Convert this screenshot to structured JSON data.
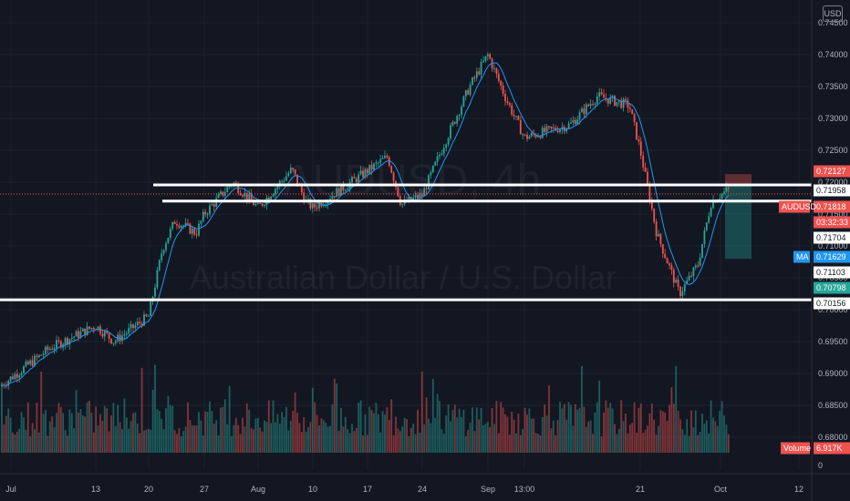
{
  "currency_label": "USD",
  "watermark": {
    "symbol": "AUDUSD, 4h",
    "name": "Australian Dollar / U.S. Dollar"
  },
  "colors": {
    "background": "#131722",
    "up": "#26a69a",
    "down": "#ef5350",
    "ma": "#2196f3",
    "level_line": "#ffffff"
  },
  "chart_data": {
    "type": "candlestick",
    "symbol": "AUDUSD",
    "timeframe": "4h",
    "title": "AUDUSD, 4h",
    "subtitle": "Australian Dollar / U.S. Dollar",
    "xlabel": "",
    "ylabel": "",
    "ylim": [
      0.675,
      0.745
    ],
    "y_ticks": [
      "0.74500",
      "0.74000",
      "0.73500",
      "0.73000",
      "0.72500",
      "0.72000",
      "0.71500",
      "0.71000",
      "0.70500",
      "0.70000",
      "0.69500",
      "0.69000",
      "0.68500",
      "0.68000"
    ],
    "x_ticks": [
      "Jul",
      "13",
      "20",
      "27",
      "Aug",
      "10",
      "17",
      "24",
      "Sep",
      "13:00",
      "21",
      "Oct",
      "12"
    ],
    "volume_axis_label": "0",
    "price_path": [
      {
        "date": "Jul",
        "close": 0.688
      },
      {
        "date": "Jul 06",
        "close": 0.694
      },
      {
        "date": "Jul 13",
        "close": 0.6975
      },
      {
        "date": "Jul 16",
        "close": 0.695
      },
      {
        "date": "Jul 20",
        "close": 0.699
      },
      {
        "date": "Jul 21",
        "close": 0.7095
      },
      {
        "date": "Jul 22",
        "close": 0.714
      },
      {
        "date": "Jul 24",
        "close": 0.712
      },
      {
        "date": "Jul 27",
        "close": 0.715
      },
      {
        "date": "Jul 30",
        "close": 0.72
      },
      {
        "date": "Aug",
        "close": 0.716
      },
      {
        "date": "Aug 05",
        "close": 0.722
      },
      {
        "date": "Aug 07",
        "close": 0.717
      },
      {
        "date": "Aug 10",
        "close": 0.716
      },
      {
        "date": "Aug 12",
        "close": 0.719
      },
      {
        "date": "Aug 17",
        "close": 0.724
      },
      {
        "date": "Aug 20",
        "close": 0.7165
      },
      {
        "date": "Aug 24",
        "close": 0.718
      },
      {
        "date": "Aug 27",
        "close": 0.726
      },
      {
        "date": "Aug 30",
        "close": 0.735
      },
      {
        "date": "Sep",
        "close": 0.74
      },
      {
        "date": "Sep 03",
        "close": 0.733
      },
      {
        "date": "Sep 07",
        "close": 0.727
      },
      {
        "date": "Sep 10",
        "close": 0.728
      },
      {
        "date": "Sep 14",
        "close": 0.729
      },
      {
        "date": "Sep 16",
        "close": 0.7335
      },
      {
        "date": "Sep 18",
        "close": 0.732
      },
      {
        "date": "Sep 21",
        "close": 0.725
      },
      {
        "date": "Sep 23",
        "close": 0.712
      },
      {
        "date": "Sep 25",
        "close": 0.7025
      },
      {
        "date": "Sep 28",
        "close": 0.707
      },
      {
        "date": "Sep 30",
        "close": 0.717
      },
      {
        "date": "Oct",
        "close": 0.719
      }
    ],
    "levels": [
      0.71958,
      0.71704,
      0.70156
    ],
    "price_labels": [
      {
        "name": "",
        "value": "0.72127",
        "color": "#ef5350"
      },
      {
        "name": "",
        "value": "0.71958",
        "color": "#ffffff"
      },
      {
        "name": "AUDUSD",
        "value": "0.71818",
        "color": "#ef5350"
      },
      {
        "name": "",
        "value": "03:32:33",
        "color": "#ef5350"
      },
      {
        "name": "",
        "value": "0.71704",
        "color": "#ffffff"
      },
      {
        "name": "",
        "value": "0.71629",
        "color": "#2196f3"
      },
      {
        "name": "MA",
        "value": "",
        "color": "#2196f3"
      },
      {
        "name": "",
        "value": "0.71103",
        "color": "#ffffff"
      },
      {
        "name": "",
        "value": "0.70798",
        "color": "#26a69a"
      },
      {
        "name": "",
        "value": "0.70156",
        "color": "#ffffff"
      },
      {
        "name": "Volume",
        "value": "6.917K",
        "color": "#ef5350"
      }
    ],
    "position": {
      "entry": 0.71958,
      "stop": 0.72127,
      "target": 0.70798
    },
    "grid": true,
    "legend": "none"
  }
}
